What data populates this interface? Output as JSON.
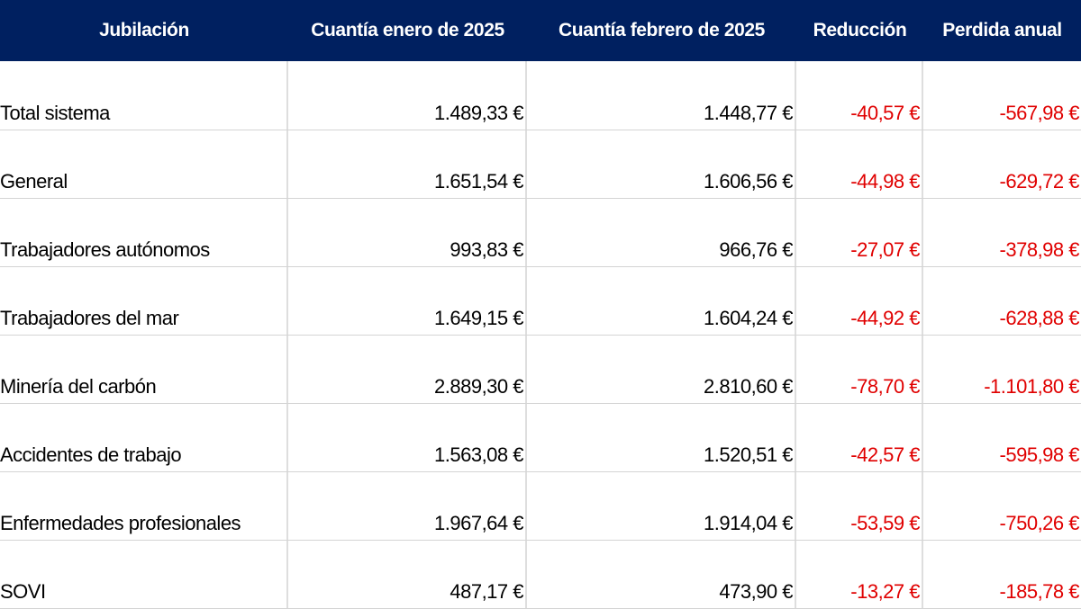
{
  "colors": {
    "header_bg": "#002060",
    "header_text": "#ffffff",
    "negative": "#e00000"
  },
  "table": {
    "headers": [
      "Jubilación",
      "Cuantía enero de 2025",
      "Cuantía febrero de 2025",
      "Reducción",
      "Perdida anual"
    ],
    "rows": [
      [
        "Total sistema",
        "1.489,33 €",
        "1.448,77 €",
        "-40,57 €",
        "-567,98 €"
      ],
      [
        "General",
        "1.651,54 €",
        "1.606,56 €",
        "-44,98 €",
        "-629,72 €"
      ],
      [
        "Trabajadores autónomos",
        "993,83 €",
        "966,76 €",
        "-27,07 €",
        "-378,98 €"
      ],
      [
        "Trabajadores del mar",
        "1.649,15 €",
        "1.604,24 €",
        "-44,92 €",
        "-628,88 €"
      ],
      [
        "Minería del carbón",
        "2.889,30 €",
        "2.810,60 €",
        "-78,70 €",
        "-1.101,80 €"
      ],
      [
        "Accidentes de trabajo",
        "1.563,08 €",
        "1.520,51 €",
        "-42,57 €",
        "-595,98 €"
      ],
      [
        "Enfermedades profesionales",
        "1.967,64 €",
        "1.914,04 €",
        "-53,59 €",
        "-750,26 €"
      ],
      [
        "SOVI",
        "487,17 €",
        "473,90 €",
        "-13,27 €",
        "-185,78 €"
      ]
    ]
  }
}
